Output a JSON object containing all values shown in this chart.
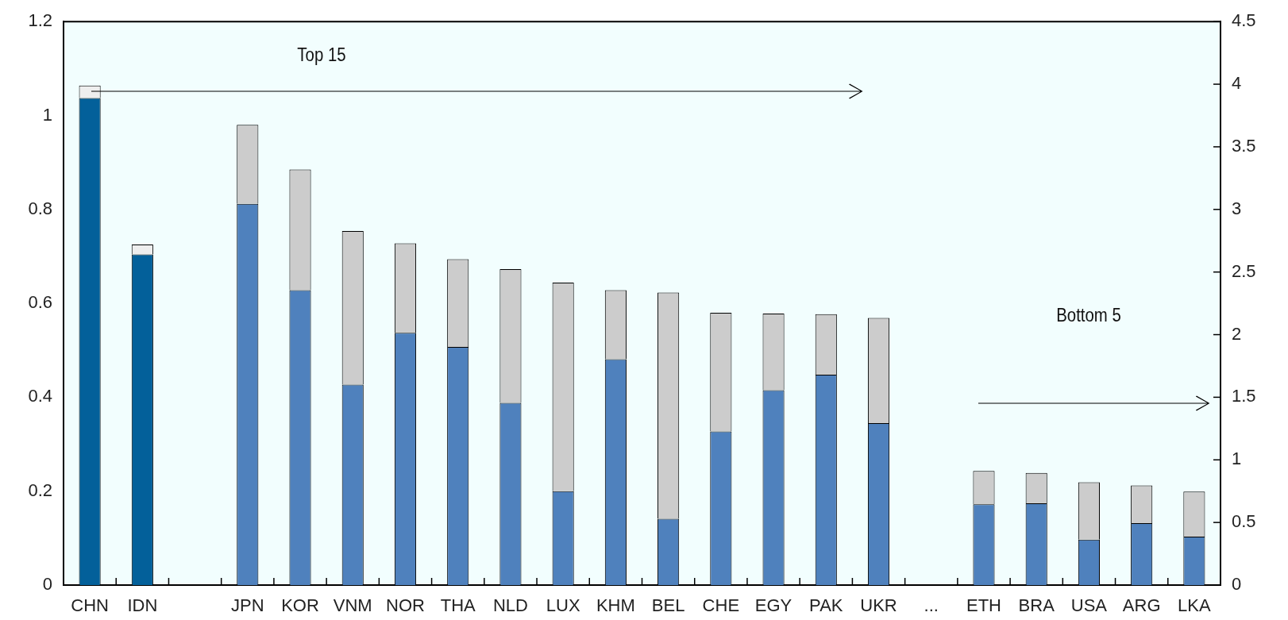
{
  "chart_data": {
    "type": "bar",
    "stacked": true,
    "categories": [
      "CHN",
      "IDN",
      null,
      "JPN",
      "KOR",
      "VNM",
      "NOR",
      "THA",
      "NLD",
      "LUX",
      "KHM",
      "BEL",
      "CHE",
      "EGY",
      "PAK",
      "UKR",
      "...",
      "ETH",
      "BRA",
      "USA",
      "ARG",
      "LKA"
    ],
    "series": [
      {
        "color": "#03609a",
        "axis": "y2",
        "values": [
          3.89,
          2.64,
          null,
          null,
          null,
          null,
          null,
          null,
          null,
          null,
          null,
          null,
          null,
          null,
          null,
          null,
          null,
          null,
          null,
          null,
          null,
          null
        ]
      },
      {
        "color": "#eeeeee",
        "axis": "y2",
        "values": [
          0.1,
          0.08,
          null,
          null,
          null,
          null,
          null,
          null,
          null,
          null,
          null,
          null,
          null,
          null,
          null,
          null,
          null,
          null,
          null,
          null,
          null,
          null
        ]
      },
      {
        "color": "#4f81bd",
        "values": [
          null,
          null,
          null,
          0.812,
          0.628,
          0.427,
          0.537,
          0.507,
          0.388,
          0.2,
          0.481,
          0.141,
          0.327,
          0.415,
          0.448,
          0.345,
          null,
          0.172,
          0.174,
          0.097,
          0.132,
          0.103
        ]
      },
      {
        "color": "#cccccc",
        "values": [
          null,
          null,
          null,
          0.168,
          0.257,
          0.327,
          0.191,
          0.187,
          0.285,
          0.444,
          0.147,
          0.482,
          0.253,
          0.163,
          0.129,
          0.224,
          null,
          0.071,
          0.065,
          0.122,
          0.08,
          0.096
        ]
      }
    ],
    "ylim": [
      0,
      1.2
    ],
    "yticks": [
      0,
      0.2,
      0.4,
      0.6,
      0.8,
      1,
      1.2
    ],
    "y2lim": [
      0,
      4.5
    ],
    "y2ticks": [
      0,
      0.5,
      1,
      1.5,
      2,
      2.5,
      3,
      3.5,
      4,
      4.5
    ],
    "annotations": [
      "Top 15",
      "Bottom 5"
    ]
  }
}
